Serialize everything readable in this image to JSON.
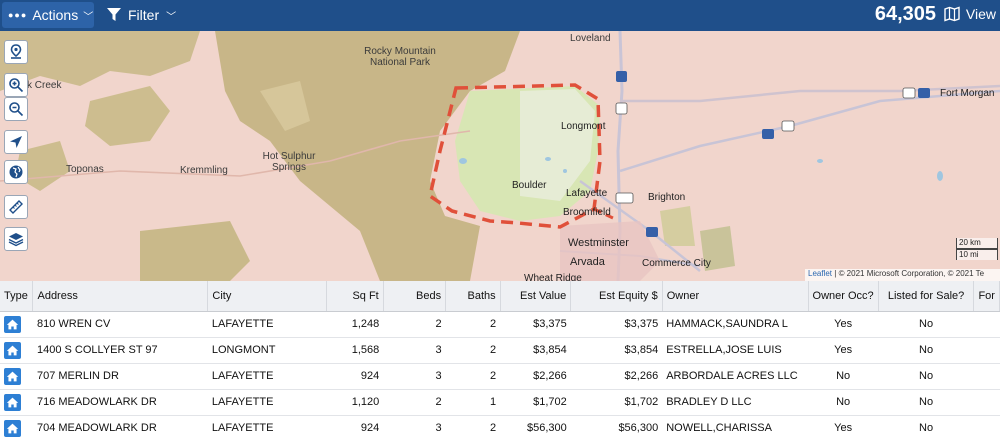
{
  "toolbar": {
    "actions_label": "Actions",
    "filter_label": "Filter",
    "result_count": "64,305",
    "view_label": "View"
  },
  "map": {
    "labels": {
      "loveland": "Loveland",
      "rocky_mountain": "Rocky Mountain",
      "national_park": "National Park",
      "k_creek": "k Creek",
      "longmont": "Longmont",
      "fort_morgan": "Fort Morgan",
      "hot_sulphur": "Hot Sulphur",
      "springs": "Springs",
      "toponas": "Toponas",
      "kremmling": "Kremmling",
      "boulder": "Boulder",
      "lafayette": "Lafayette",
      "broomfield": "Broomfield",
      "brighton": "Brighton",
      "westminster": "Westminster",
      "arvada": "Arvada",
      "commerce_city": "Commerce City",
      "wheat_ridge": "Wheat Ridge"
    },
    "highway_shields": [
      "25",
      "87",
      "34",
      "76",
      "6",
      "470",
      "76"
    ],
    "scale_km": "20 km",
    "scale_mi": "10 mi",
    "attribution_link": "Leaflet",
    "attribution_text": "| © 2021 Microsoft Corporation, © 2021 Te",
    "draw_color": "#e0503a"
  },
  "table": {
    "columns": [
      "Type",
      "Address",
      "City",
      "Sq Ft",
      "Beds",
      "Baths",
      "Est Value",
      "Est Equity $",
      "Owner",
      "Owner Occ?",
      "Listed for Sale?",
      "For"
    ],
    "rows": [
      {
        "address": "810 WREN CV",
        "city": "LAFAYETTE",
        "sqft": "1,248",
        "beds": "2",
        "baths": "2",
        "value": "$3,375",
        "equity": "$3,375",
        "owner": "HAMMACK,SAUNDRA L",
        "owner_occ": "Yes",
        "listed": "No"
      },
      {
        "address": "1400 S COLLYER ST 97",
        "city": "LONGMONT",
        "sqft": "1,568",
        "beds": "3",
        "baths": "2",
        "value": "$3,854",
        "equity": "$3,854",
        "owner": "ESTRELLA,JOSE LUIS",
        "owner_occ": "Yes",
        "listed": "No"
      },
      {
        "address": "707 MERLIN DR",
        "city": "LAFAYETTE",
        "sqft": "924",
        "beds": "3",
        "baths": "2",
        "value": "$2,266",
        "equity": "$2,266",
        "owner": "ARBORDALE ACRES LLC",
        "owner_occ": "No",
        "listed": "No"
      },
      {
        "address": "716 MEADOWLARK DR",
        "city": "LAFAYETTE",
        "sqft": "1,120",
        "beds": "2",
        "baths": "1",
        "value": "$1,702",
        "equity": "$1,702",
        "owner": "BRADLEY D LLC",
        "owner_occ": "No",
        "listed": "No"
      },
      {
        "address": "704 MEADOWLARK DR",
        "city": "LAFAYETTE",
        "sqft": "924",
        "beds": "3",
        "baths": "2",
        "value": "$56,300",
        "equity": "$56,300",
        "owner": "NOWELL,CHARISSA",
        "owner_occ": "Yes",
        "listed": "No"
      }
    ]
  },
  "colors": {
    "header_bar": "#1f4f8a",
    "actions_button": "#2d63a8",
    "home_icon": "#2d7fd4"
  }
}
